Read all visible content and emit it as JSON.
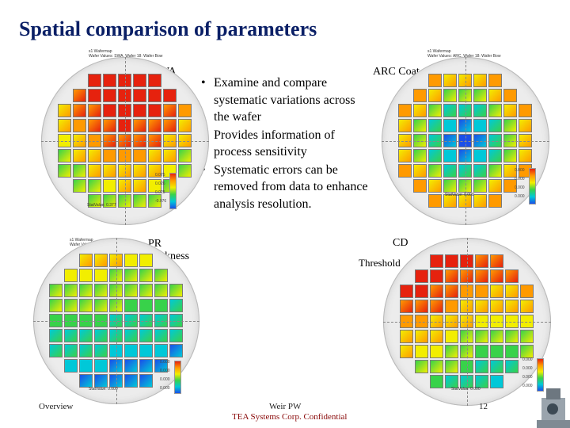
{
  "title": "Spatial comparison of parameters",
  "labels": {
    "swa": "SWA",
    "arc": "ARC Coat",
    "pr_line1": "PR",
    "pr_line2": "thickness",
    "cd_line1": "CD",
    "cd_line2": "Threshold"
  },
  "bullets": [
    "Examine and compare systematic variations across the wafer",
    "Provides information of process sensitivity",
    "Systematic errors can be removed from data to enhance analysis resolution."
  ],
  "bullet_symbol": "•",
  "footer": {
    "left": "Overview",
    "center": "Weir PW",
    "page": "12",
    "confidential": "TEA Systems Corp. Confidential"
  },
  "maps": {
    "swa": {
      "hdr1": "s1 Wafermap",
      "hdr2": "Wafer Values: SWA, Wafer 18: Wafer Bow",
      "stat": "StatValue: 0.377",
      "ticks": [
        "0.075",
        "0.026",
        "0.025",
        "-0.076"
      ]
    },
    "arc": {
      "hdr1": "s1 Wafermap",
      "hdr2": "Wafer Values: ARC, Wafer 18: Wafer Bow",
      "stat": "StatValue: 0.000",
      "ticks": [
        "0.000",
        "0.000",
        "0.000",
        "0.000"
      ]
    },
    "pr": {
      "hdr1": "s1 Wafermap",
      "hdr2": "Wafer Values: PR, Wafer 18: Wafer Bow",
      "stat": "StatValue: 0.000",
      "ticks": [
        "0.000",
        "0.000",
        "0.000",
        "0.000"
      ]
    },
    "cd": {
      "hdr1": "",
      "hdr2": "",
      "stat": "StatValue: 0.000",
      "ticks": [
        "0.000",
        "0.000",
        "0.000",
        "0.000"
      ]
    }
  },
  "palette": {
    "red": "#e6220e",
    "orange": "#ff9a00",
    "yellow": "#f2ee00",
    "green": "#38d24a",
    "cyan": "#00c8d8",
    "blue": "#1b4fe8"
  }
}
